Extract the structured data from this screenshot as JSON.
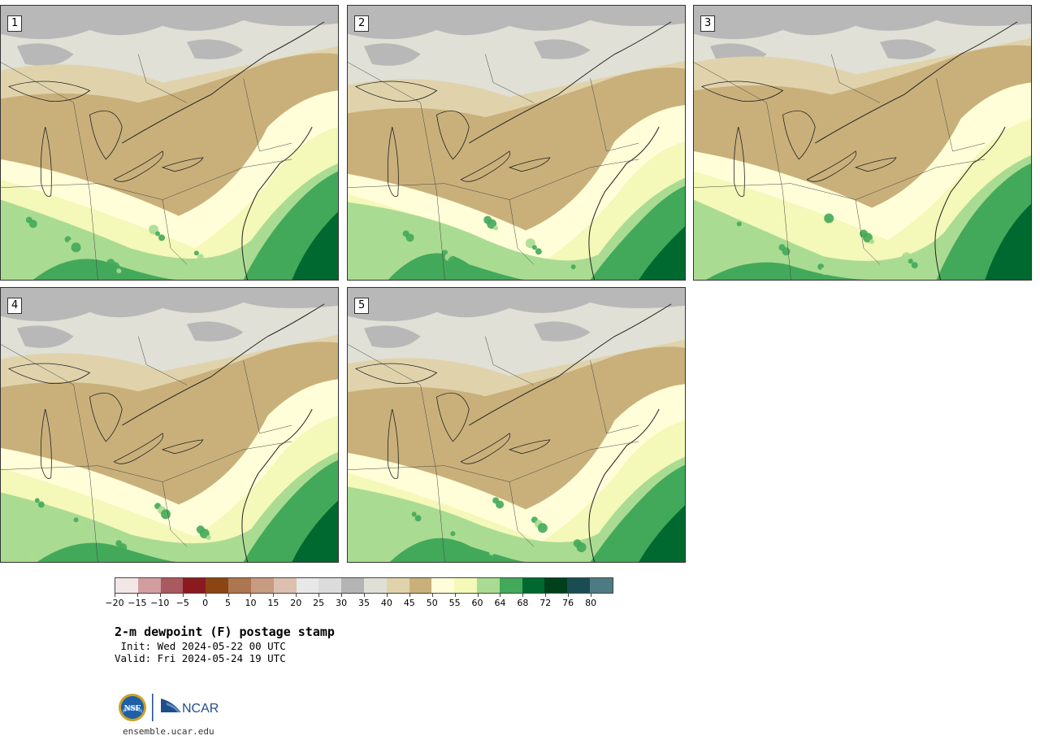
{
  "panels": [
    {
      "label": "1"
    },
    {
      "label": "2"
    },
    {
      "label": "3"
    },
    {
      "label": "4"
    },
    {
      "label": "5"
    }
  ],
  "colorbar": {
    "ticks": [
      "−20",
      "−15",
      "−10",
      "−5",
      "0",
      "5",
      "10",
      "15",
      "20",
      "25",
      "30",
      "35",
      "40",
      "45",
      "50",
      "55",
      "60",
      "64",
      "68",
      "72",
      "76",
      "80"
    ],
    "colors": [
      "#f2e6e6",
      "#d19ea0",
      "#a95a5f",
      "#8b1a1f",
      "#8b4513",
      "#ac7650",
      "#c79b80",
      "#dcbfae",
      "#e8e8e8",
      "#dcdcdc",
      "#b4b4b4",
      "#e0e0d6",
      "#e0d3ac",
      "#c9b07a",
      "#fffed8",
      "#f4f8b8",
      "#aadb92",
      "#43a95a",
      "#00692f",
      "#00401a",
      "#1a4d52",
      "#4e7a82"
    ]
  },
  "title": "2-m dewpoint (F) postage stamp",
  "init": " Init: Wed 2024-05-22 00 UTC",
  "valid": "Valid: Fri 2024-05-24 19 UTC",
  "logos": {
    "nsf": "NSF",
    "ncar": "NCAR"
  },
  "url": "ensemble.ucar.edu"
}
